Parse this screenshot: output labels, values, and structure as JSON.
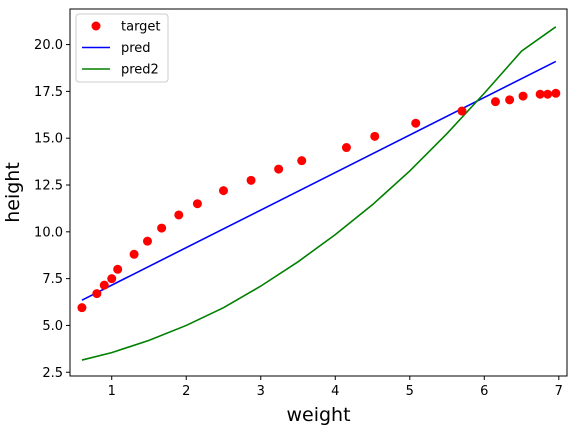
{
  "chart_data": {
    "type": "line",
    "title": "",
    "xlabel": "weight",
    "ylabel": "height",
    "xlim": [
      0.44,
      7.11
    ],
    "ylim": [
      2.3,
      21.9
    ],
    "xticks": [
      1,
      2,
      3,
      4,
      5,
      6,
      7
    ],
    "yticks": [
      2.5,
      5.0,
      7.5,
      10.0,
      12.5,
      15.0,
      17.5,
      20.0
    ],
    "xtick_labels": [
      "1",
      "2",
      "3",
      "4",
      "5",
      "6",
      "7"
    ],
    "ytick_labels": [
      "2.5",
      "5.0",
      "7.5",
      "10.0",
      "12.5",
      "15.0",
      "17.5",
      "20.0"
    ],
    "grid": false,
    "legend_position": "top-left",
    "series": [
      {
        "name": "target",
        "kind": "scatter",
        "color": "#ff0000",
        "x": [
          0.6,
          0.8,
          0.9,
          1.0,
          1.08,
          1.3,
          1.48,
          1.67,
          1.9,
          2.15,
          2.5,
          2.87,
          3.24,
          3.55,
          4.15,
          4.53,
          5.08,
          5.7,
          6.15,
          6.34,
          6.52,
          6.75,
          6.85,
          6.96
        ],
        "y": [
          5.95,
          6.7,
          7.15,
          7.5,
          8.0,
          8.8,
          9.5,
          10.2,
          10.9,
          11.5,
          12.2,
          12.75,
          13.35,
          13.8,
          14.5,
          15.1,
          15.8,
          16.45,
          16.95,
          17.05,
          17.25,
          17.35,
          17.35,
          17.4
        ]
      },
      {
        "name": "pred",
        "kind": "line",
        "color": "#0000ff",
        "x": [
          0.6,
          6.96
        ],
        "y": [
          6.35,
          19.1
        ]
      },
      {
        "name": "pred2",
        "kind": "line",
        "color": "#008000",
        "x": [
          0.6,
          1.0,
          1.5,
          2.0,
          2.5,
          3.0,
          3.5,
          4.0,
          4.5,
          5.0,
          5.5,
          6.0,
          6.5,
          6.96
        ],
        "y": [
          3.15,
          3.55,
          4.2,
          5.0,
          5.95,
          7.1,
          8.4,
          9.85,
          11.45,
          13.25,
          15.25,
          17.4,
          19.65,
          20.95
        ]
      }
    ]
  }
}
